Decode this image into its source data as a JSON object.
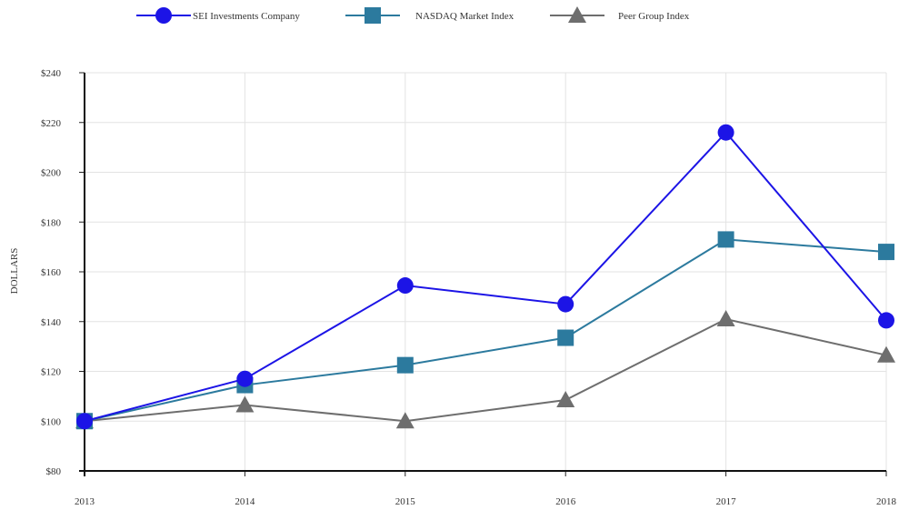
{
  "chart_data": {
    "type": "line",
    "title": "",
    "xlabel": "",
    "ylabel": "DOLLARS",
    "x": [
      "2013",
      "2014",
      "2015",
      "2016",
      "2017",
      "2018"
    ],
    "ylim": [
      80,
      240
    ],
    "yticks": [
      80,
      100,
      120,
      140,
      160,
      180,
      200,
      220,
      240
    ],
    "ytick_labels": [
      "$80",
      "$100",
      "$120",
      "$140",
      "$160",
      "$180",
      "$200",
      "$220",
      "$240"
    ],
    "grid": true,
    "legend_position": "top",
    "series": [
      {
        "name": "SEI Investments Company",
        "color": "#1c14e6",
        "marker": "circle",
        "values": [
          100,
          117,
          154.5,
          147,
          216,
          140.5
        ]
      },
      {
        "name": "NASDAQ Market Index",
        "color": "#2c7a9e",
        "marker": "square",
        "values": [
          100,
          114.5,
          122.5,
          133.5,
          173,
          168
        ]
      },
      {
        "name": "Peer Group Index",
        "color": "#6e6e6e",
        "marker": "triangle",
        "values": [
          100,
          106.5,
          100,
          108.5,
          141,
          126.5
        ]
      }
    ]
  }
}
